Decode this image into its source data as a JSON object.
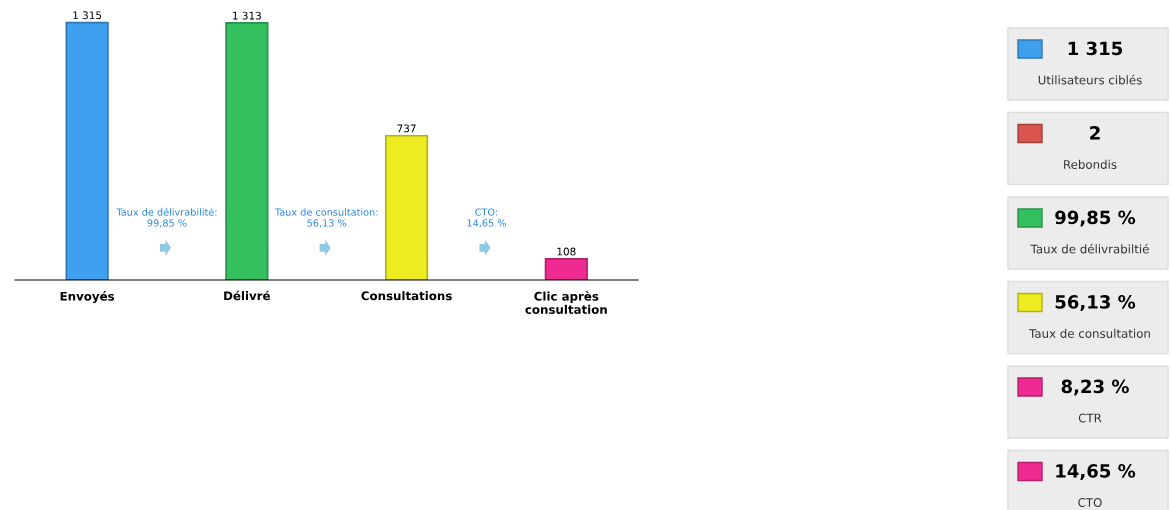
{
  "chart_data": [
    {
      "type": "bar",
      "categories": [
        "Envoyés",
        "Délivré",
        "Consultations",
        "Clic après\nconsultation"
      ],
      "values": [
        1315,
        1313,
        737,
        108
      ],
      "colors": [
        "#3ea0ee",
        "#35c060",
        "#ecec20",
        "#ef2a90"
      ],
      "data_labels": true,
      "value_labels": [
        "1 315",
        "1 313",
        "737",
        "108"
      ],
      "annotations": [
        "Taux de délivrabilité:\n99,85 %",
        "Taux de consultation:\n56,13 %",
        "CTO:\n14,65 %"
      ],
      "grid": false,
      "legend": false
    },
    {
      "type": "other",
      "annotations": [
        "1 315",
        "Utilisateurs ciblés",
        "2",
        "Rebondis",
        "99,85 %",
        "Taux de délivrabiltié",
        "56,13 %",
        "Taux de consultation",
        "8,23 %",
        "CTR",
        "14,65 %",
        "CTO"
      ],
      "colors": [
        "#3ea0ee",
        "#d9534f",
        "#35c060",
        "#ecec20",
        "#ef2a90",
        "#ef2a90"
      ]
    }
  ]
}
